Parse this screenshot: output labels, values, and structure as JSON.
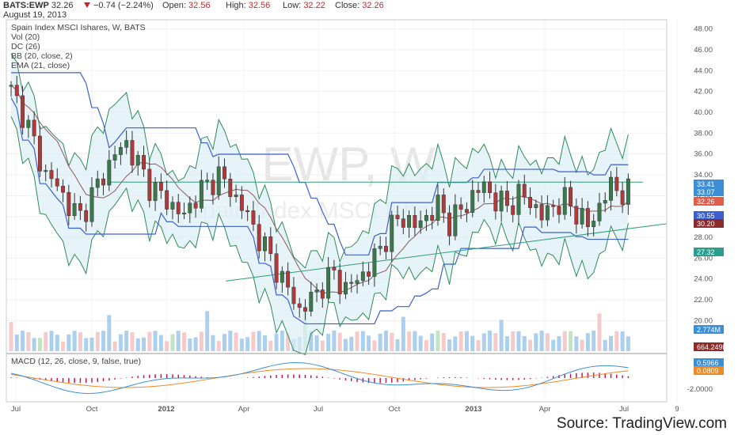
{
  "header": {
    "ticker": "BATS:EWP",
    "last": "32.26",
    "change": "−0.74 (−2.24%)",
    "open_label": "Open:",
    "open": "32.56",
    "high_label": "High:",
    "high": "32.56",
    "low_label": "Low:",
    "low": "32.22",
    "close_label": "Close:",
    "close": "32.26",
    "date": "August 19, 2013"
  },
  "legend": {
    "title": "Spain Index MSCI Ishares, W, BATS",
    "vol": "Vol (20)",
    "dc": "DC (26)",
    "bb": "BB (20, close, 2)",
    "ema": "EMA (21, close)",
    "macd": "MACD (12, 26, close, 9, false, true)"
  },
  "watermark": {
    "symbol": "EWP, W",
    "name": "Spain Index MSCI Ishares"
  },
  "source": "Source: TradingView.com",
  "colors": {
    "up": "#3a7a4a",
    "down": "#b03a3a",
    "donchian": "#3b5fcf",
    "bollinger": "#2e8b57",
    "band_fill": "#dceef5",
    "ema": "#8b5a5a",
    "trend": "#2e9e7a",
    "macd": "#3a8fd6",
    "signal": "#f08a24",
    "hist": "#c2185b",
    "vol_up": "#9cc7ec",
    "vol_down": "#f3c1c1",
    "vol_spike": "#b9dfb9"
  },
  "chart_data": [
    {
      "type": "candlestick",
      "title": "Spain Index MSCI Ishares, W, BATS",
      "x_ticks": [
        "Jul",
        "Oct",
        "2012",
        "Apr",
        "Jul",
        "Oct",
        "2013",
        "Apr",
        "Jul",
        "9"
      ],
      "y_ticks": [
        "48.00",
        "46.00",
        "44.00",
        "42.00",
        "40.00",
        "38.00",
        "36.00",
        "34.00",
        "32.00",
        "30.00",
        "28.00",
        "26.00",
        "24.00",
        "22.00",
        "20.00"
      ],
      "ylim": [
        19.5,
        48.5
      ],
      "price_tags": [
        "33.41",
        "33.07",
        "32.26",
        "30.55",
        "30.20",
        "27.32"
      ],
      "approx_close_path": [
        42,
        40,
        37,
        34,
        33,
        31,
        30,
        32,
        34,
        36,
        37,
        35,
        33,
        32,
        31,
        30,
        32,
        33,
        34,
        32.5,
        31,
        29,
        27,
        25,
        23,
        21,
        22,
        23.5,
        24.5,
        23,
        24,
        25,
        27,
        29,
        30,
        29,
        30,
        31,
        29.5,
        30.5,
        32,
        33,
        31.5,
        31,
        32,
        31.5,
        30,
        31,
        31.5,
        30.5,
        29,
        31,
        33,
        32.26
      ]
    },
    {
      "type": "bar",
      "title": "Vol (20)",
      "price_tags": [
        "2.774M",
        "664.249K"
      ]
    },
    {
      "type": "line",
      "title": "MACD (12, 26, close, 9, false, true)",
      "y_ticks": [
        "-2.0000"
      ],
      "price_tags": [
        "0.5966",
        "0.0809"
      ]
    }
  ]
}
